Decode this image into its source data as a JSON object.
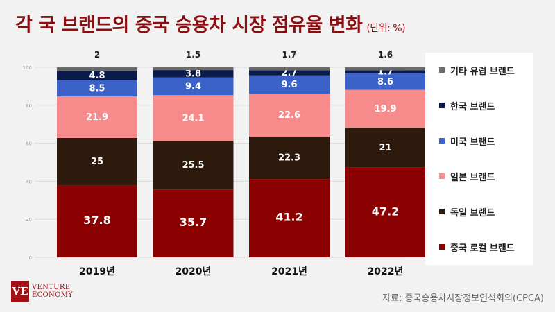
{
  "title": "각 국 브랜드의 중국 승용차 시장 점유율 변화",
  "unit": "(단위: %)",
  "source": "자료: 중국승용차시장정보연석회의(CPCA)",
  "logo": {
    "mark": "VE",
    "line1": "VENTURE",
    "line2": "ECONOMY"
  },
  "chart_data": {
    "type": "bar",
    "stacked": true,
    "categories": [
      "2019년",
      "2020년",
      "2021년",
      "2022년"
    ],
    "ylim": [
      0,
      100
    ],
    "yticks": [
      0,
      20,
      40,
      60,
      80,
      100
    ],
    "grid": true,
    "legend_position": "right",
    "series": [
      {
        "name": "중국 로컬 브랜드",
        "color": "#8b0000",
        "label_color": "#ffffff",
        "values": [
          37.8,
          35.7,
          41.2,
          47.2
        ]
      },
      {
        "name": "독일 브랜드",
        "color": "#2e1a0c",
        "label_color": "#ffffff",
        "values": [
          25,
          25.5,
          22.3,
          21
        ]
      },
      {
        "name": "일본 브랜드",
        "color": "#f78b8b",
        "label_color": "#ffffff",
        "values": [
          21.9,
          24.1,
          22.6,
          19.9
        ]
      },
      {
        "name": "미국 브랜드",
        "color": "#3b62c8",
        "label_color": "#ffffff",
        "values": [
          8.5,
          9.4,
          9.6,
          8.6
        ]
      },
      {
        "name": "한국 브랜드",
        "color": "#0a1a4a",
        "label_color": "#ffffff",
        "values": [
          4.8,
          3.8,
          2.7,
          1.7
        ]
      },
      {
        "name": "기타 유럽 브랜드",
        "color": "#6b6b6b",
        "label_color": "#222222",
        "values": [
          2,
          1.5,
          1.7,
          1.6
        ]
      }
    ]
  }
}
